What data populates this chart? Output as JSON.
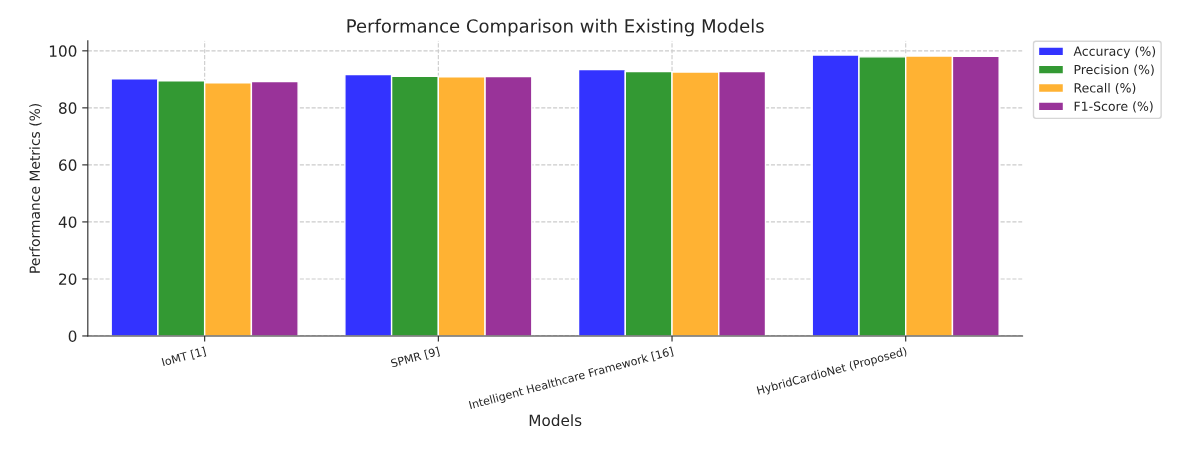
{
  "chart_data": {
    "type": "bar",
    "title": "Performance Comparison with Existing Models",
    "xlabel": "Models",
    "ylabel": "Performance Metrics (%)",
    "categories": [
      "IoMT [1]",
      "SPMR [9]",
      "Intelligent Healthcare Framework [16]",
      "HybridCardioNet (Proposed)"
    ],
    "series": [
      {
        "name": "Accuracy (%)",
        "color": "#3333ff",
        "values": [
          90.2,
          91.7,
          93.4,
          98.5
        ]
      },
      {
        "name": "Precision (%)",
        "color": "#339933",
        "values": [
          89.5,
          91.1,
          92.7,
          97.9
        ]
      },
      {
        "name": "Recall (%)",
        "color": "#ffb233",
        "values": [
          88.8,
          90.9,
          92.6,
          98.2
        ]
      },
      {
        "name": "F1-Score (%)",
        "color": "#993399",
        "values": [
          89.2,
          91.0,
          92.7,
          98.1
        ]
      }
    ],
    "ylim": [
      0,
      103.5
    ],
    "yticks": [
      0,
      20,
      40,
      60,
      80,
      100
    ],
    "grid": true,
    "legend": "top right"
  }
}
